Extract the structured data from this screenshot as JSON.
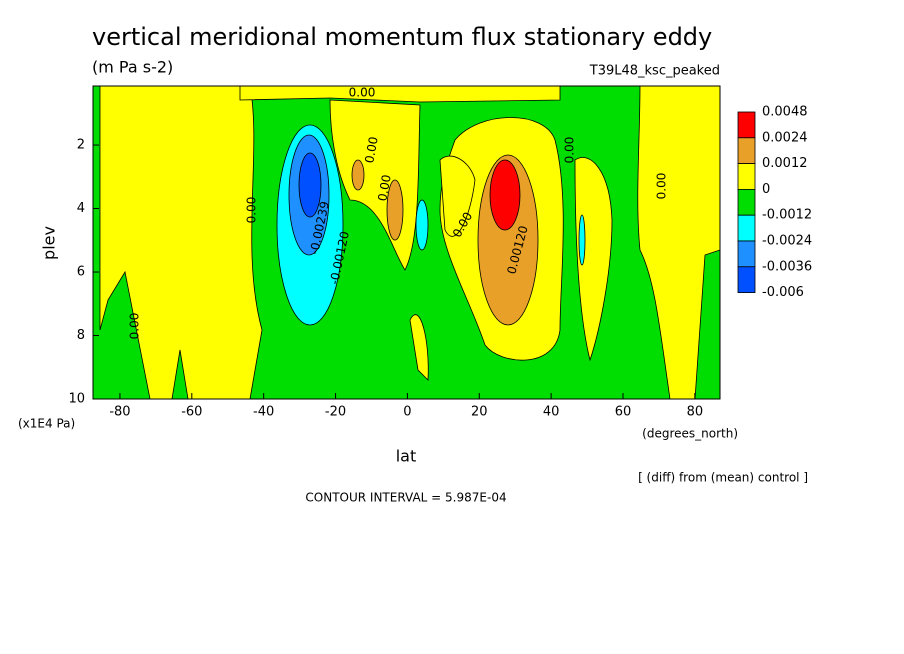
{
  "chart_data": {
    "type": "contour",
    "title": "vertical meridional momentum flux stationary eddy",
    "units": "(m Pa s-2)",
    "run": "T39L48_ksc_peaked",
    "x_label": "lat",
    "x_units": "(degrees_north)",
    "y_label": "plev",
    "y_units": "(x1E4 Pa)",
    "note": "[ (diff) from (mean) control ]",
    "contour_interval": "CONTOUR INTERVAL = 5.987E-04",
    "xlim": [
      -87.5,
      87
    ],
    "xticks": [
      -80,
      -60,
      -40,
      -20,
      0,
      20,
      40,
      60,
      80
    ],
    "ylim": [
      0.14,
      10
    ],
    "yticks": [
      2,
      4,
      6,
      8,
      10
    ],
    "y_reversed": true,
    "levels": [
      0.0048,
      0.0024,
      0.0012,
      0,
      -0.0012,
      -0.0024,
      -0.0036,
      -0.006
    ],
    "colors": [
      "#ff0000",
      "#e8a028",
      "#ffff00",
      "#00dd00",
      "#00ffff",
      "#1e90ff",
      "#0050ff"
    ],
    "contour_labels": [
      "0.00",
      "0.00",
      "-0.00239",
      "-0.00120",
      "0.00",
      "0.00",
      "0.00120",
      "0.00",
      "0.00",
      "0.00",
      "0.00"
    ]
  }
}
